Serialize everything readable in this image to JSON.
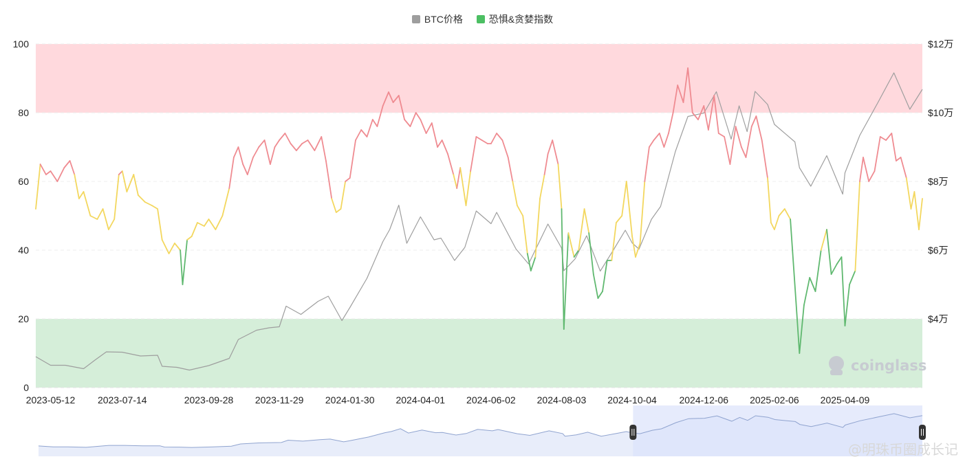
{
  "legend": {
    "btc_label": "BTC价格",
    "fg_label": "恐惧&贪婪指数",
    "btc_color": "#9e9e9e",
    "fg_color": "#4cbf63"
  },
  "colors": {
    "greed_zone": "#ffd9dd",
    "fear_zone": "#d5eed9",
    "greed_line": "#ef8b91",
    "neutral_line": "#f3d75e",
    "fear_line": "#5fb86f",
    "btc_line": "#9e9e9e",
    "navigator_fill": "#e8edfa",
    "navigator_line": "#8fa3cf",
    "navigator_selected": "#dbe3fb"
  },
  "watermark": "coinglass",
  "credit": "@明珠币圈成长记",
  "chart_data": {
    "type": "line",
    "title": "",
    "x_ticks": [
      "2023-05-12",
      "2023-07-14",
      "2023-09-28",
      "2023-11-29",
      "2024-01-30",
      "2024-04-01",
      "2024-06-02",
      "2024-08-03",
      "2024-10-04",
      "2024-12-06",
      "2025-02-06",
      "2025-04-09"
    ],
    "y_left": {
      "ticks": [
        0,
        20,
        40,
        60,
        80,
        100
      ],
      "range": [
        0,
        100
      ]
    },
    "y_right": {
      "ticks": [
        "$4万",
        "$6万",
        "$8万",
        "$10万",
        "$12万"
      ],
      "tick_values": [
        40000,
        60000,
        80000,
        100000,
        120000
      ],
      "range": [
        20000,
        120000
      ]
    },
    "zones": [
      {
        "name": "extreme_greed",
        "from": 80,
        "to": 100
      },
      {
        "name": "extreme_fear",
        "from": 0,
        "to": 20
      }
    ],
    "series": [
      {
        "name": "恐惧&贪婪指数",
        "axis": "left",
        "points": [
          [
            "2023-04-29",
            52
          ],
          [
            "2023-05-03",
            65
          ],
          [
            "2023-05-08",
            62
          ],
          [
            "2023-05-12",
            63
          ],
          [
            "2023-05-18",
            60
          ],
          [
            "2023-05-24",
            64
          ],
          [
            "2023-05-29",
            66
          ],
          [
            "2023-06-02",
            62
          ],
          [
            "2023-06-06",
            55
          ],
          [
            "2023-06-10",
            57
          ],
          [
            "2023-06-16",
            50
          ],
          [
            "2023-06-22",
            49
          ],
          [
            "2023-06-27",
            52
          ],
          [
            "2023-07-02",
            46
          ],
          [
            "2023-07-07",
            49
          ],
          [
            "2023-07-11",
            62
          ],
          [
            "2023-07-14",
            63
          ],
          [
            "2023-07-18",
            57
          ],
          [
            "2023-07-24",
            62
          ],
          [
            "2023-07-28",
            56
          ],
          [
            "2023-08-03",
            54
          ],
          [
            "2023-08-09",
            53
          ],
          [
            "2023-08-14",
            52
          ],
          [
            "2023-08-18",
            43
          ],
          [
            "2023-08-24",
            39
          ],
          [
            "2023-08-29",
            42
          ],
          [
            "2023-09-03",
            40
          ],
          [
            "2023-09-05",
            30
          ],
          [
            "2023-09-09",
            43
          ],
          [
            "2023-09-13",
            44
          ],
          [
            "2023-09-18",
            48
          ],
          [
            "2023-09-24",
            47
          ],
          [
            "2023-09-28",
            49
          ],
          [
            "2023-10-04",
            46
          ],
          [
            "2023-10-10",
            50
          ],
          [
            "2023-10-16",
            58
          ],
          [
            "2023-10-20",
            67
          ],
          [
            "2023-10-24",
            70
          ],
          [
            "2023-10-28",
            65
          ],
          [
            "2023-11-01",
            62
          ],
          [
            "2023-11-06",
            67
          ],
          [
            "2023-11-11",
            70
          ],
          [
            "2023-11-16",
            72
          ],
          [
            "2023-11-21",
            65
          ],
          [
            "2023-11-25",
            70
          ],
          [
            "2023-11-29",
            72
          ],
          [
            "2023-12-04",
            74
          ],
          [
            "2023-12-09",
            71
          ],
          [
            "2023-12-14",
            69
          ],
          [
            "2023-12-19",
            71
          ],
          [
            "2023-12-24",
            72
          ],
          [
            "2023-12-30",
            69
          ],
          [
            "2024-01-05",
            73
          ],
          [
            "2024-01-09",
            66
          ],
          [
            "2024-01-14",
            55
          ],
          [
            "2024-01-18",
            51
          ],
          [
            "2024-01-22",
            52
          ],
          [
            "2024-01-26",
            60
          ],
          [
            "2024-01-30",
            61
          ],
          [
            "2024-02-04",
            72
          ],
          [
            "2024-02-09",
            75
          ],
          [
            "2024-02-14",
            73
          ],
          [
            "2024-02-19",
            78
          ],
          [
            "2024-02-23",
            76
          ],
          [
            "2024-02-28",
            82
          ],
          [
            "2024-03-04",
            86
          ],
          [
            "2024-03-08",
            83
          ],
          [
            "2024-03-13",
            85
          ],
          [
            "2024-03-18",
            78
          ],
          [
            "2024-03-23",
            76
          ],
          [
            "2024-03-28",
            80
          ],
          [
            "2024-04-01",
            78
          ],
          [
            "2024-04-06",
            74
          ],
          [
            "2024-04-11",
            77
          ],
          [
            "2024-04-16",
            70
          ],
          [
            "2024-04-20",
            72
          ],
          [
            "2024-04-25",
            68
          ],
          [
            "2024-04-30",
            62
          ],
          [
            "2024-05-03",
            58
          ],
          [
            "2024-05-06",
            64
          ],
          [
            "2024-05-11",
            53
          ],
          [
            "2024-05-15",
            63
          ],
          [
            "2024-05-20",
            73
          ],
          [
            "2024-05-25",
            72
          ],
          [
            "2024-05-30",
            71
          ],
          [
            "2024-06-02",
            71
          ],
          [
            "2024-06-07",
            74
          ],
          [
            "2024-06-12",
            72
          ],
          [
            "2024-06-17",
            67
          ],
          [
            "2024-06-21",
            60
          ],
          [
            "2024-06-25",
            53
          ],
          [
            "2024-06-30",
            50
          ],
          [
            "2024-07-04",
            39
          ],
          [
            "2024-07-07",
            34
          ],
          [
            "2024-07-11",
            38
          ],
          [
            "2024-07-15",
            55
          ],
          [
            "2024-07-19",
            62
          ],
          [
            "2024-07-22",
            68
          ],
          [
            "2024-07-26",
            72
          ],
          [
            "2024-07-31",
            65
          ],
          [
            "2024-08-03",
            52
          ],
          [
            "2024-08-05",
            17
          ],
          [
            "2024-08-09",
            45
          ],
          [
            "2024-08-14",
            38
          ],
          [
            "2024-08-18",
            40
          ],
          [
            "2024-08-23",
            52
          ],
          [
            "2024-08-27",
            45
          ],
          [
            "2024-08-31",
            33
          ],
          [
            "2024-09-04",
            26
          ],
          [
            "2024-09-08",
            28
          ],
          [
            "2024-09-12",
            37
          ],
          [
            "2024-09-16",
            37
          ],
          [
            "2024-09-20",
            48
          ],
          [
            "2024-09-25",
            50
          ],
          [
            "2024-09-29",
            60
          ],
          [
            "2024-10-04",
            44
          ],
          [
            "2024-10-07",
            38
          ],
          [
            "2024-10-11",
            42
          ],
          [
            "2024-10-15",
            60
          ],
          [
            "2024-10-19",
            70
          ],
          [
            "2024-10-23",
            72
          ],
          [
            "2024-10-28",
            74
          ],
          [
            "2024-11-01",
            70
          ],
          [
            "2024-11-05",
            74
          ],
          [
            "2024-11-09",
            80
          ],
          [
            "2024-11-13",
            88
          ],
          [
            "2024-11-18",
            83
          ],
          [
            "2024-11-22",
            93
          ],
          [
            "2024-11-26",
            80
          ],
          [
            "2024-12-01",
            78
          ],
          [
            "2024-12-06",
            82
          ],
          [
            "2024-12-10",
            75
          ],
          [
            "2024-12-15",
            85
          ],
          [
            "2024-12-19",
            74
          ],
          [
            "2024-12-24",
            73
          ],
          [
            "2024-12-29",
            65
          ],
          [
            "2025-01-03",
            76
          ],
          [
            "2025-01-08",
            70
          ],
          [
            "2025-01-12",
            67
          ],
          [
            "2025-01-17",
            76
          ],
          [
            "2025-01-21",
            79
          ],
          [
            "2025-01-26",
            72
          ],
          [
            "2025-01-31",
            61
          ],
          [
            "2025-02-03",
            48
          ],
          [
            "2025-02-06",
            46
          ],
          [
            "2025-02-10",
            50
          ],
          [
            "2025-02-15",
            52
          ],
          [
            "2025-02-20",
            49
          ],
          [
            "2025-02-25",
            25
          ],
          [
            "2025-02-28",
            10
          ],
          [
            "2025-03-04",
            24
          ],
          [
            "2025-03-09",
            32
          ],
          [
            "2025-03-14",
            28
          ],
          [
            "2025-03-19",
            40
          ],
          [
            "2025-03-24",
            46
          ],
          [
            "2025-03-28",
            33
          ],
          [
            "2025-04-02",
            36
          ],
          [
            "2025-04-06",
            38
          ],
          [
            "2025-04-09",
            18
          ],
          [
            "2025-04-13",
            30
          ],
          [
            "2025-04-18",
            34
          ],
          [
            "2025-04-22",
            60
          ],
          [
            "2025-04-25",
            67
          ],
          [
            "2025-04-30",
            60
          ],
          [
            "2025-05-05",
            63
          ],
          [
            "2025-05-10",
            73
          ],
          [
            "2025-05-15",
            72
          ],
          [
            "2025-05-20",
            74
          ],
          [
            "2025-05-24",
            66
          ],
          [
            "2025-05-28",
            67
          ],
          [
            "2025-06-02",
            61
          ],
          [
            "2025-06-06",
            52
          ],
          [
            "2025-06-09",
            57
          ],
          [
            "2025-06-13",
            46
          ],
          [
            "2025-06-16",
            55
          ]
        ]
      },
      {
        "name": "BTC价格",
        "axis": "right",
        "points": [
          [
            "2023-04-29",
            29000
          ],
          [
            "2023-05-12",
            26500
          ],
          [
            "2023-05-25",
            26500
          ],
          [
            "2023-06-10",
            25500
          ],
          [
            "2023-06-20",
            28000
          ],
          [
            "2023-06-30",
            30400
          ],
          [
            "2023-07-14",
            30300
          ],
          [
            "2023-07-30",
            29200
          ],
          [
            "2023-08-14",
            29400
          ],
          [
            "2023-08-18",
            26200
          ],
          [
            "2023-08-31",
            25900
          ],
          [
            "2023-09-11",
            25100
          ],
          [
            "2023-09-28",
            26400
          ],
          [
            "2023-10-16",
            28500
          ],
          [
            "2023-10-24",
            34000
          ],
          [
            "2023-11-09",
            36700
          ],
          [
            "2023-11-20",
            37400
          ],
          [
            "2023-11-29",
            37700
          ],
          [
            "2023-12-05",
            43700
          ],
          [
            "2023-12-18",
            41300
          ],
          [
            "2024-01-02",
            45100
          ],
          [
            "2024-01-11",
            46600
          ],
          [
            "2024-01-23",
            39500
          ],
          [
            "2024-01-30",
            43300
          ],
          [
            "2024-02-14",
            51800
          ],
          [
            "2024-02-28",
            62500
          ],
          [
            "2024-03-05",
            66000
          ],
          [
            "2024-03-13",
            73100
          ],
          [
            "2024-03-20",
            62000
          ],
          [
            "2024-04-01",
            69700
          ],
          [
            "2024-04-13",
            63000
          ],
          [
            "2024-04-19",
            63500
          ],
          [
            "2024-05-01",
            57000
          ],
          [
            "2024-05-10",
            60800
          ],
          [
            "2024-05-20",
            71400
          ],
          [
            "2024-06-02",
            67700
          ],
          [
            "2024-06-07",
            71000
          ],
          [
            "2024-06-24",
            60300
          ],
          [
            "2024-07-05",
            56000
          ],
          [
            "2024-07-22",
            67600
          ],
          [
            "2024-08-03",
            60600
          ],
          [
            "2024-08-05",
            54000
          ],
          [
            "2024-08-15",
            57500
          ],
          [
            "2024-08-25",
            64200
          ],
          [
            "2024-09-06",
            53900
          ],
          [
            "2024-09-18",
            60300
          ],
          [
            "2024-09-28",
            65800
          ],
          [
            "2024-10-04",
            62100
          ],
          [
            "2024-10-10",
            60300
          ],
          [
            "2024-10-21",
            69000
          ],
          [
            "2024-10-29",
            72700
          ],
          [
            "2024-11-11",
            88700
          ],
          [
            "2024-11-22",
            98900
          ],
          [
            "2024-12-06",
            99900
          ],
          [
            "2024-12-17",
            106100
          ],
          [
            "2024-12-30",
            92300
          ],
          [
            "2025-01-06",
            102000
          ],
          [
            "2025-01-13",
            94500
          ],
          [
            "2025-01-20",
            106200
          ],
          [
            "2025-01-31",
            102400
          ],
          [
            "2025-02-06",
            96600
          ],
          [
            "2025-02-24",
            91500
          ],
          [
            "2025-02-28",
            84000
          ],
          [
            "2025-03-10",
            78600
          ],
          [
            "2025-03-24",
            87500
          ],
          [
            "2025-04-07",
            76300
          ],
          [
            "2025-04-09",
            82500
          ],
          [
            "2025-04-22",
            93400
          ],
          [
            "2025-05-08",
            103000
          ],
          [
            "2025-05-22",
            111600
          ],
          [
            "2025-06-05",
            101000
          ],
          [
            "2025-06-16",
            106800
          ]
        ]
      }
    ]
  }
}
